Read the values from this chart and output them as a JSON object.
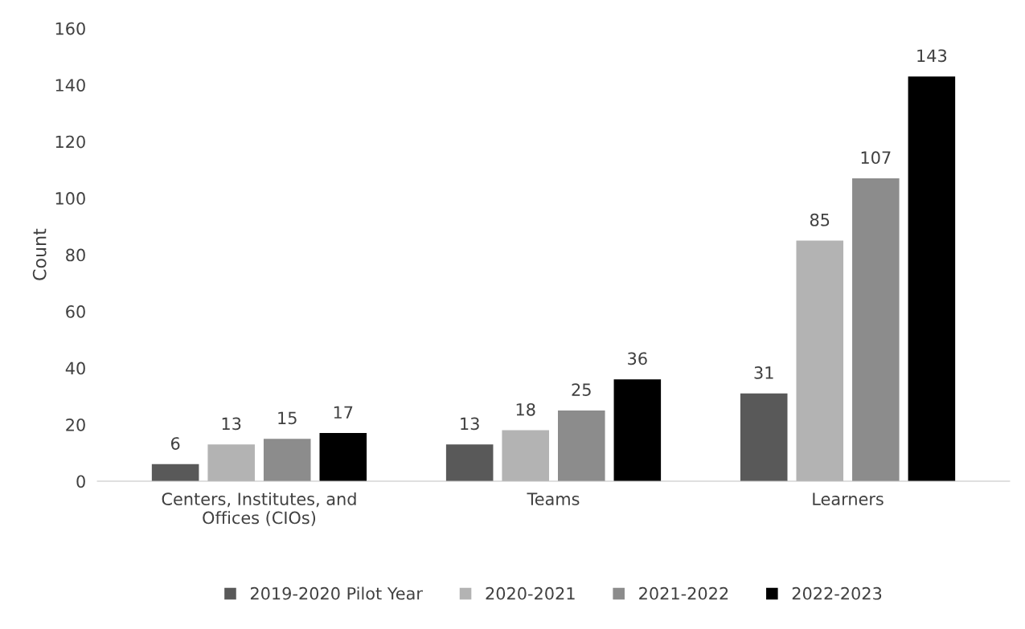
{
  "chart_data": {
    "type": "bar",
    "ylabel": "Count",
    "categories": [
      "Centers, Institutes, and\nOffices (CIOs)",
      "Teams",
      "Learners"
    ],
    "series": [
      {
        "name": "2019-2020 Pilot Year",
        "color": "#595959",
        "values": [
          6,
          13,
          31
        ]
      },
      {
        "name": "2020-2021",
        "color": "#b3b3b3",
        "values": [
          13,
          18,
          85
        ]
      },
      {
        "name": "2021-2022",
        "color": "#8c8c8c",
        "values": [
          15,
          25,
          107
        ]
      },
      {
        "name": "2022-2023",
        "color": "#000000",
        "values": [
          17,
          36,
          143
        ]
      }
    ],
    "ylim": [
      0,
      160
    ],
    "yticks": [
      0,
      20,
      40,
      60,
      80,
      100,
      120,
      140,
      160
    ],
    "grid": false,
    "legend": "bottom",
    "data_labels": true
  }
}
